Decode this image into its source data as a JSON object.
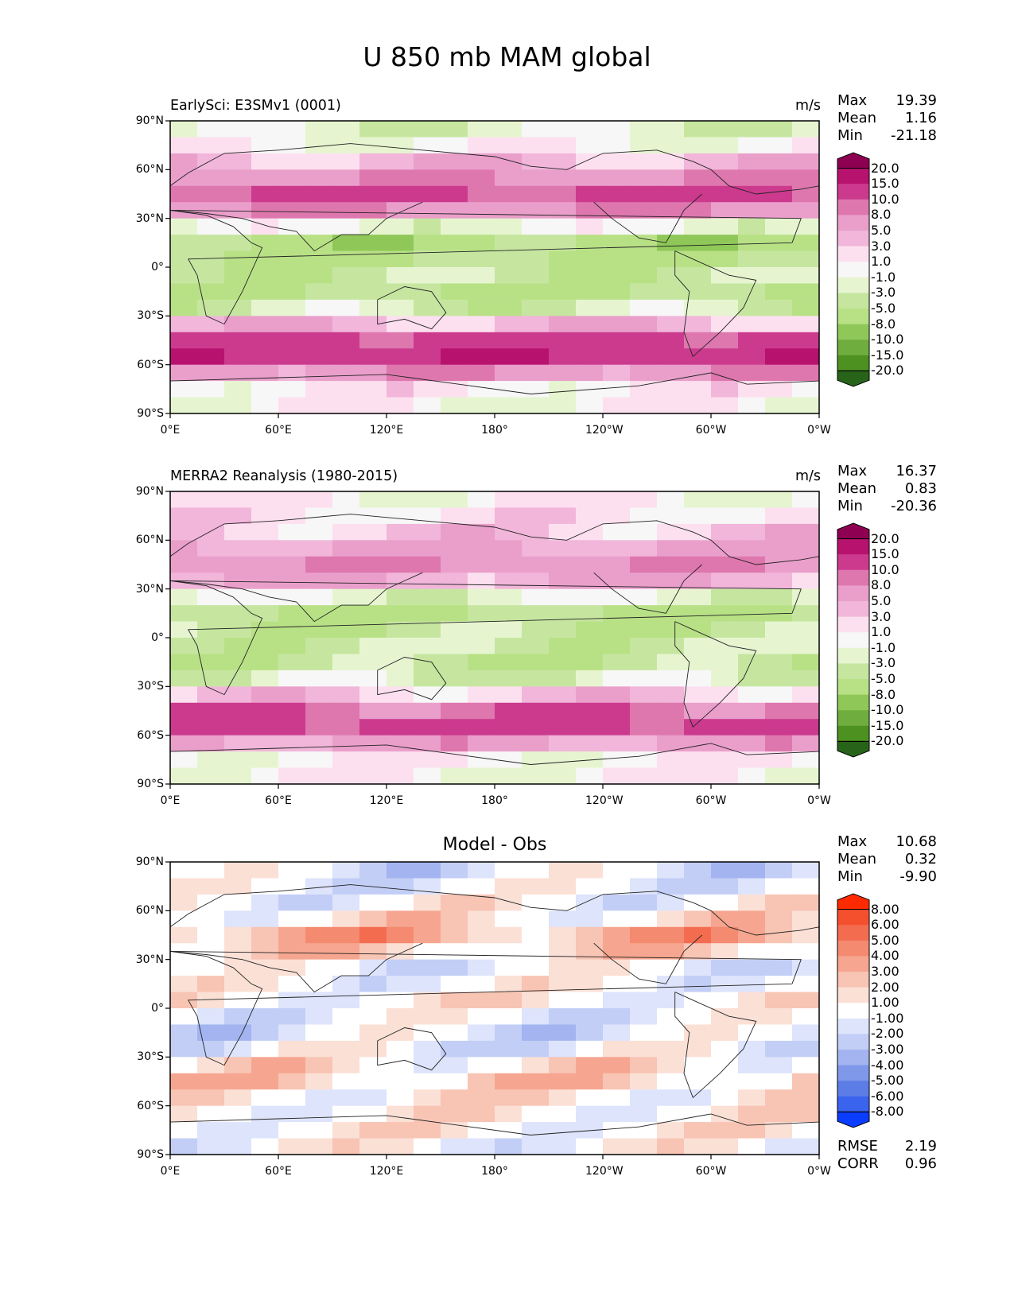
{
  "figure_title": "U 850 mb MAM global",
  "chart_data": [
    {
      "type": "heatmap",
      "kind": "filled-contour-map",
      "title": "EarlySci: E3SMv1 (0001)",
      "units": "m/s",
      "stats": {
        "max_label": "Max",
        "max": "19.39",
        "mean_label": "Mean",
        "mean": "1.16",
        "min_label": "Min",
        "min": "-21.18"
      },
      "x_ticks": [
        "0°E",
        "60°E",
        "120°E",
        "180°",
        "120°W",
        "60°W",
        "0°W"
      ],
      "y_ticks": [
        "90°N",
        "60°N",
        "30°N",
        "0°",
        "30°S",
        "60°S",
        "90°S"
      ],
      "xlim": [
        0,
        360
      ],
      "ylim": [
        -90,
        90
      ],
      "colorbar": {
        "levels": [
          "20.0",
          "15.0",
          "10.0",
          "8.0",
          "5.0",
          "3.0",
          "1.0",
          "-1.0",
          "-3.0",
          "-5.0",
          "-8.0",
          "-10.0",
          "-15.0",
          "-20.0"
        ],
        "colors": [
          "#8e0152",
          "#b8126f",
          "#cc3a8e",
          "#de77ae",
          "#ea9fcb",
          "#f1b6da",
          "#fde0ef",
          "#f7f7f7",
          "#e6f5d0",
          "#c6e6a0",
          "#b8e186",
          "#8fc858",
          "#6fae3e",
          "#4d9221",
          "#276419"
        ]
      },
      "bands": [
        {
          "lat": 90,
          "value": -1
        },
        {
          "lat": 80,
          "value": -3
        },
        {
          "lat": 70,
          "value": 3
        },
        {
          "lat": 60,
          "value": 5
        },
        {
          "lat": 50,
          "value": 10
        },
        {
          "lat": 40,
          "value": 12
        },
        {
          "lat": 30,
          "value": 3
        },
        {
          "lat": 20,
          "value": -5
        },
        {
          "lat": 10,
          "value": -8
        },
        {
          "lat": 0,
          "value": -3
        },
        {
          "lat": -10,
          "value": -5
        },
        {
          "lat": -20,
          "value": -6
        },
        {
          "lat": -30,
          "value": 0
        },
        {
          "lat": -40,
          "value": 8
        },
        {
          "lat": -50,
          "value": 16
        },
        {
          "lat": -60,
          "value": 12
        },
        {
          "lat": -70,
          "value": 2
        },
        {
          "lat": -80,
          "value": 0
        },
        {
          "lat": -90,
          "value": 0
        }
      ]
    },
    {
      "type": "heatmap",
      "kind": "filled-contour-map",
      "title": "MERRA2 Reanalysis (1980-2015)",
      "units": "m/s",
      "stats": {
        "max_label": "Max",
        "max": "16.37",
        "mean_label": "Mean",
        "mean": "0.83",
        "min_label": "Min",
        "min": "-20.36"
      },
      "x_ticks": [
        "0°E",
        "60°E",
        "120°E",
        "180°",
        "120°W",
        "60°W",
        "0°W"
      ],
      "y_ticks": [
        "90°N",
        "60°N",
        "30°N",
        "0°",
        "30°S",
        "60°S",
        "90°S"
      ],
      "xlim": [
        0,
        360
      ],
      "ylim": [
        -90,
        90
      ],
      "colorbar": {
        "levels": [
          "20.0",
          "15.0",
          "10.0",
          "8.0",
          "5.0",
          "3.0",
          "1.0",
          "-1.0",
          "-3.0",
          "-5.0",
          "-8.0",
          "-10.0",
          "-15.0",
          "-20.0"
        ],
        "colors": [
          "#8e0152",
          "#b8126f",
          "#cc3a8e",
          "#de77ae",
          "#ea9fcb",
          "#f1b6da",
          "#fde0ef",
          "#f7f7f7",
          "#e6f5d0",
          "#c6e6a0",
          "#b8e186",
          "#8fc858",
          "#6fae3e",
          "#4d9221",
          "#276419"
        ]
      },
      "bands": [
        {
          "lat": 90,
          "value": 0
        },
        {
          "lat": 80,
          "value": 1
        },
        {
          "lat": 70,
          "value": 2
        },
        {
          "lat": 60,
          "value": 4
        },
        {
          "lat": 50,
          "value": 7
        },
        {
          "lat": 40,
          "value": 8
        },
        {
          "lat": 30,
          "value": 2
        },
        {
          "lat": 20,
          "value": -5
        },
        {
          "lat": 10,
          "value": -6
        },
        {
          "lat": 0,
          "value": -3
        },
        {
          "lat": -10,
          "value": -4
        },
        {
          "lat": -20,
          "value": -5
        },
        {
          "lat": -30,
          "value": 0
        },
        {
          "lat": -40,
          "value": 6
        },
        {
          "lat": -50,
          "value": 13
        },
        {
          "lat": -60,
          "value": 11
        },
        {
          "lat": -70,
          "value": 1
        },
        {
          "lat": -80,
          "value": 0
        },
        {
          "lat": -90,
          "value": 0
        }
      ]
    },
    {
      "type": "heatmap",
      "kind": "filled-contour-map",
      "title": "Model - Obs",
      "units": "",
      "stats": {
        "max_label": "Max",
        "max": "10.68",
        "mean_label": "Mean",
        "mean": "0.32",
        "min_label": "Min",
        "min": "-9.90",
        "rmse_label": "RMSE",
        "rmse": "2.19",
        "corr_label": "CORR",
        "corr": "0.96"
      },
      "x_ticks": [
        "0°E",
        "60°E",
        "120°E",
        "180°",
        "120°W",
        "60°W",
        "0°W"
      ],
      "y_ticks": [
        "90°N",
        "60°N",
        "30°N",
        "0°",
        "30°S",
        "60°S",
        "90°S"
      ],
      "xlim": [
        0,
        360
      ],
      "ylim": [
        -90,
        90
      ],
      "colorbar": {
        "levels": [
          "8.00",
          "6.00",
          "5.00",
          "4.00",
          "3.00",
          "2.00",
          "1.00",
          "-1.00",
          "-2.00",
          "-3.00",
          "-4.00",
          "-5.00",
          "-6.00",
          "-8.00"
        ],
        "colors": [
          "#ff2a00",
          "#f4502e",
          "#f46c50",
          "#f48a70",
          "#f6a690",
          "#f8c4b4",
          "#fbe0d6",
          "#ffffff",
          "#dde4fb",
          "#c2cef6",
          "#a3b4f0",
          "#8098ea",
          "#5c7de6",
          "#3a63ee",
          "#0a3dff"
        ]
      },
      "bands": [
        {
          "lat": 90,
          "value": 0
        },
        {
          "lat": 80,
          "value": -2
        },
        {
          "lat": 70,
          "value": 1
        },
        {
          "lat": 60,
          "value": -1
        },
        {
          "lat": 50,
          "value": 3
        },
        {
          "lat": 40,
          "value": 3
        },
        {
          "lat": 30,
          "value": 0
        },
        {
          "lat": 20,
          "value": -1
        },
        {
          "lat": 10,
          "value": 1
        },
        {
          "lat": 0,
          "value": 0
        },
        {
          "lat": -10,
          "value": -1
        },
        {
          "lat": -20,
          "value": -1
        },
        {
          "lat": -30,
          "value": 0
        },
        {
          "lat": -40,
          "value": 2
        },
        {
          "lat": -50,
          "value": 1.5
        },
        {
          "lat": -60,
          "value": 0
        },
        {
          "lat": -70,
          "value": 1
        },
        {
          "lat": -80,
          "value": 0
        },
        {
          "lat": -90,
          "value": 0
        }
      ]
    }
  ]
}
